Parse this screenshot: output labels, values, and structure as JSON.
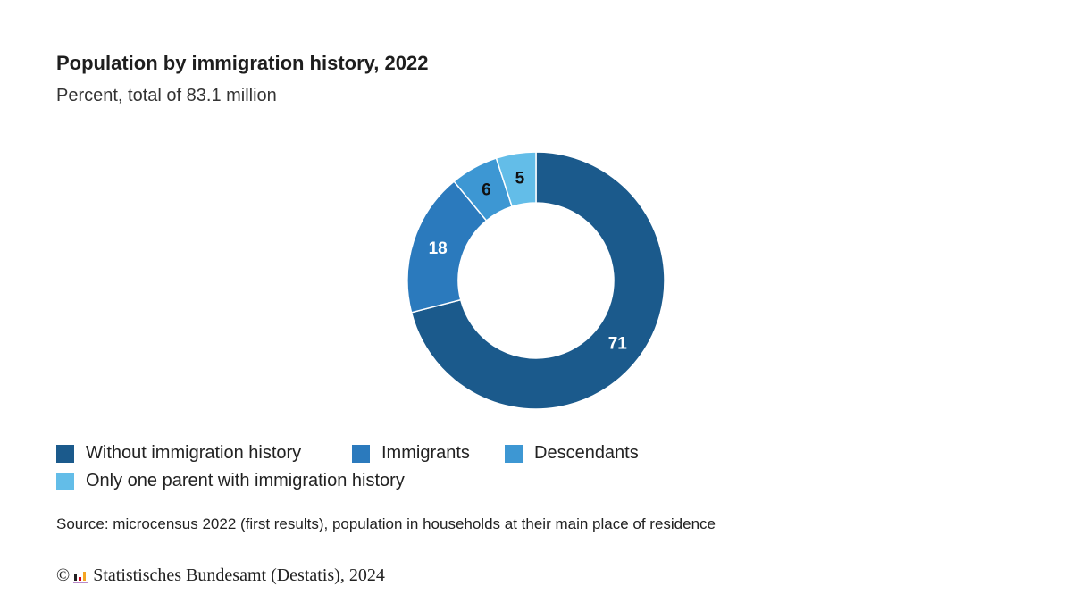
{
  "title": "Population by immigration history, 2022",
  "subtitle": "Percent, total of 83.1 million",
  "chart_data": {
    "type": "pie",
    "variant": "donut",
    "title": "Population by immigration history, 2022",
    "subtitle": "Percent, total of 83.1 million",
    "categories": [
      "Without immigration history",
      "Immigrants",
      "Descendants",
      "Only one parent with immigration history"
    ],
    "values": [
      71,
      18,
      6,
      5
    ],
    "labels": [
      "71",
      "18",
      "6",
      "5"
    ],
    "colors": [
      "#1b5a8c",
      "#2b7abd",
      "#3d97d3",
      "#63bde8"
    ],
    "label_colors": [
      "#ffffff",
      "#ffffff",
      "#111111",
      "#111111"
    ],
    "legend_position": "bottom-left"
  },
  "source": "Source: microcensus 2022 (first results), population in households at their main place of residence",
  "copyright": {
    "symbol": "©",
    "text": "Statistisches Bundesamt (Destatis), 2024",
    "logo_icon": "destatis-bar-logo-icon"
  }
}
